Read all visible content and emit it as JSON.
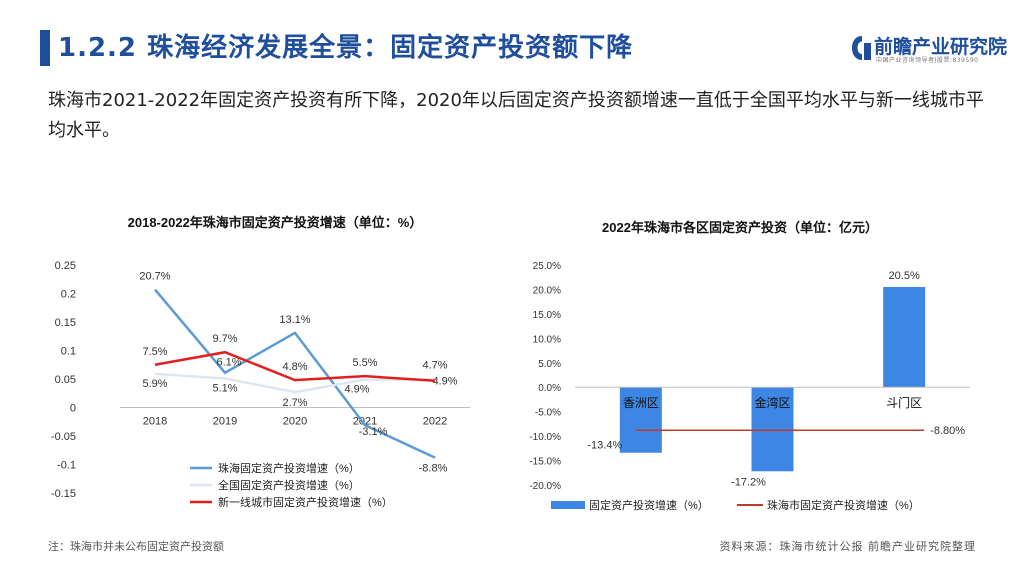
{
  "header": {
    "title": "1.2.2 珠海经济发展全景：固定资产投资额下降",
    "logo_name": "前瞻产业研究院",
    "logo_tag": "中国产业咨询领导者|股票:839590"
  },
  "intro": "珠海市2021-2022年固定资产投资有所下降，2020年以后固定资产投资额增速一直低于全国平均水平与新一线城市平均水平。",
  "colors": {
    "brand": "#1f4e9c",
    "zhuhai_line": "#5b9bd5",
    "national_line": "#dbe6f2",
    "newtier1_line": "#e02020",
    "bar": "#3e86e3",
    "zhuhai_ref_line": "#c0392b"
  },
  "chart_data": [
    {
      "type": "line",
      "title": "2018-2022年珠海市固定资产投资增速（单位：%）",
      "categories": [
        "2018",
        "2019",
        "2020",
        "2021",
        "2022"
      ],
      "ylim": [
        -0.15,
        0.25
      ],
      "yticks": [
        "0.25",
        "0.2",
        "0.15",
        "0.1",
        "0.05",
        "0",
        "-0.05",
        "-0.1",
        "-0.15"
      ],
      "legend_position": "bottom",
      "series": [
        {
          "name": "珠海固定资产投资增速（%）",
          "values": [
            0.207,
            0.061,
            0.131,
            -0.031,
            -0.088
          ],
          "labels": [
            "20.7%",
            "6.1%",
            "13.1%",
            "-3.1%",
            "-8.8%"
          ]
        },
        {
          "name": "全国固定资产投资增速（%）",
          "values": [
            0.059,
            0.051,
            0.027,
            0.049,
            0.049
          ],
          "labels": [
            "5.9%",
            "5.1%",
            "2.7%",
            "4.9%",
            "4.9%"
          ]
        },
        {
          "name": "新一线城市固定资产投资增速（%）",
          "values": [
            0.075,
            0.097,
            0.048,
            0.055,
            0.047
          ],
          "labels": [
            "7.5%",
            "9.7%",
            "4.8%",
            "5.5%",
            "4.7%"
          ]
        }
      ]
    },
    {
      "type": "bar",
      "title": "2022年珠海市各区固定资产投资（单位：亿元）",
      "categories": [
        "香洲区",
        "金湾区",
        "斗门区"
      ],
      "ylim": [
        -0.2,
        0.25
      ],
      "yticks": [
        "25.0%",
        "20.0%",
        "15.0%",
        "10.0%",
        "5.0%",
        "0.0%",
        "-5.0%",
        "-10.0%",
        "-15.0%",
        "-20.0%"
      ],
      "legend_position": "bottom",
      "series": [
        {
          "name": "固定资产投资增速（%）",
          "values": [
            -0.134,
            -0.172,
            0.205
          ],
          "labels": [
            "-13.4%",
            "-17.2%",
            "20.5%"
          ]
        }
      ],
      "reference_line": {
        "name": "珠海市固定资产投资增速（%）",
        "value": -0.088,
        "label": "-8.80%"
      }
    }
  ],
  "footer": {
    "note": "注：珠海市并未公布固定资产投资额",
    "source": "资料来源：珠海市统计公报 前瞻产业研究院整理"
  }
}
